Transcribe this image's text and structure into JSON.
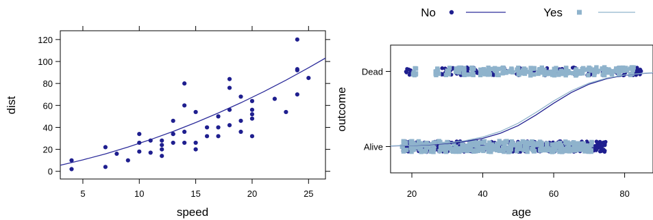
{
  "chart_data": [
    {
      "type": "scatter",
      "title": "",
      "xlabel": "speed",
      "ylabel": "dist",
      "xlim": [
        3,
        26.5
      ],
      "ylim": [
        -7,
        128
      ],
      "xticks": [
        5,
        10,
        15,
        20,
        25
      ],
      "yticks": [
        0,
        20,
        40,
        60,
        80,
        100,
        120
      ],
      "grid": false,
      "point_color": "#1f1f8f",
      "line_color": "#2b2b9a",
      "points": [
        [
          4,
          2
        ],
        [
          4,
          10
        ],
        [
          7,
          4
        ],
        [
          7,
          22
        ],
        [
          8,
          16
        ],
        [
          9,
          10
        ],
        [
          10,
          18
        ],
        [
          10,
          26
        ],
        [
          10,
          34
        ],
        [
          11,
          17
        ],
        [
          11,
          28
        ],
        [
          12,
          14
        ],
        [
          12,
          20
        ],
        [
          12,
          24
        ],
        [
          12,
          28
        ],
        [
          13,
          26
        ],
        [
          13,
          34
        ],
        [
          13,
          34
        ],
        [
          13,
          46
        ],
        [
          14,
          26
        ],
        [
          14,
          36
        ],
        [
          14,
          60
        ],
        [
          14,
          80
        ],
        [
          15,
          20
        ],
        [
          15,
          26
        ],
        [
          15,
          54
        ],
        [
          16,
          32
        ],
        [
          16,
          40
        ],
        [
          17,
          32
        ],
        [
          17,
          40
        ],
        [
          17,
          50
        ],
        [
          18,
          42
        ],
        [
          18,
          56
        ],
        [
          18,
          76
        ],
        [
          18,
          84
        ],
        [
          19,
          36
        ],
        [
          19,
          46
        ],
        [
          19,
          68
        ],
        [
          20,
          32
        ],
        [
          20,
          48
        ],
        [
          20,
          52
        ],
        [
          20,
          56
        ],
        [
          20,
          64
        ],
        [
          22,
          66
        ],
        [
          23,
          54
        ],
        [
          24,
          70
        ],
        [
          24,
          92
        ],
        [
          24,
          93
        ],
        [
          24,
          120
        ],
        [
          25,
          85
        ]
      ],
      "fit_curve": [
        [
          3,
          5.5
        ],
        [
          5,
          10.4
        ],
        [
          7,
          15.9
        ],
        [
          9,
          22.1
        ],
        [
          11,
          28.9
        ],
        [
          13,
          36.3
        ],
        [
          15,
          44.4
        ],
        [
          17,
          53.1
        ],
        [
          19,
          62.4
        ],
        [
          21,
          72.4
        ],
        [
          23,
          83.0
        ],
        [
          25,
          94.3
        ],
        [
          26.5,
          103.1
        ]
      ]
    },
    {
      "type": "scatter",
      "title": "",
      "xlabel": "age",
      "ylabel": "outcome",
      "xlim": [
        14,
        88
      ],
      "ylim": [
        -0.35,
        1.35
      ],
      "xticks": [
        20,
        40,
        60,
        80
      ],
      "yticks": [
        "Alive",
        "Dead"
      ],
      "grid": false,
      "legend": {
        "placement": "top",
        "entries": [
          "No",
          "Yes"
        ]
      },
      "series": [
        {
          "name": "No",
          "color": "#1f1f8f",
          "marker": "circle",
          "points": [
            [
              18,
              0
            ],
            [
              19,
              0
            ],
            [
              20,
              0
            ],
            [
              22,
              0
            ],
            [
              24,
              0
            ],
            [
              25,
              0
            ],
            [
              27,
              0
            ],
            [
              28,
              0
            ],
            [
              30,
              0
            ],
            [
              32,
              0
            ],
            [
              33,
              0
            ],
            [
              35,
              0
            ],
            [
              37,
              0
            ],
            [
              38,
              0
            ],
            [
              40,
              0
            ],
            [
              42,
              0
            ],
            [
              44,
              0
            ],
            [
              46,
              0
            ],
            [
              48,
              0
            ],
            [
              50,
              0
            ],
            [
              52,
              0
            ],
            [
              54,
              0
            ],
            [
              56,
              0
            ],
            [
              58,
              0
            ],
            [
              60,
              0
            ],
            [
              62,
              0
            ],
            [
              64,
              0
            ],
            [
              66,
              0
            ],
            [
              68,
              0
            ],
            [
              70,
              0
            ],
            [
              72,
              0
            ],
            [
              73,
              0
            ],
            [
              74,
              0
            ],
            [
              19,
              1
            ],
            [
              29,
              1
            ],
            [
              31,
              1
            ],
            [
              33,
              1
            ],
            [
              34,
              1
            ],
            [
              36,
              1
            ],
            [
              38,
              1
            ],
            [
              43,
              1
            ],
            [
              46,
              1
            ],
            [
              50,
              1
            ],
            [
              54,
              1
            ],
            [
              58,
              1
            ],
            [
              62,
              1
            ],
            [
              66,
              1
            ],
            [
              70,
              1
            ],
            [
              74,
              1
            ],
            [
              78,
              1
            ],
            [
              80,
              1
            ],
            [
              82,
              1
            ],
            [
              83,
              1
            ],
            [
              84,
              1
            ]
          ],
          "fit_curve": [
            [
              14,
              0.007
            ],
            [
              20,
              0.014
            ],
            [
              25,
              0.024
            ],
            [
              30,
              0.04
            ],
            [
              35,
              0.066
            ],
            [
              40,
              0.109
            ],
            [
              45,
              0.177
            ],
            [
              50,
              0.279
            ],
            [
              55,
              0.42
            ],
            [
              60,
              0.576
            ],
            [
              65,
              0.72
            ],
            [
              70,
              0.83
            ],
            [
              75,
              0.904
            ],
            [
              80,
              0.948
            ],
            [
              85,
              0.972
            ],
            [
              88,
              0.981
            ]
          ]
        },
        {
          "name": "Yes",
          "color": "#8fb3cc",
          "marker": "square",
          "points": [
            [
              18,
              0
            ],
            [
              20,
              0
            ],
            [
              22,
              0
            ],
            [
              24,
              0
            ],
            [
              26,
              0
            ],
            [
              28,
              0
            ],
            [
              30,
              0
            ],
            [
              32,
              0
            ],
            [
              34,
              0
            ],
            [
              36,
              0
            ],
            [
              38,
              0
            ],
            [
              40,
              0
            ],
            [
              42,
              0
            ],
            [
              44,
              0
            ],
            [
              46,
              0
            ],
            [
              48,
              0
            ],
            [
              50,
              0
            ],
            [
              52,
              0
            ],
            [
              54,
              0
            ],
            [
              56,
              0
            ],
            [
              58,
              0
            ],
            [
              60,
              0
            ],
            [
              62,
              0
            ],
            [
              64,
              0
            ],
            [
              66,
              0
            ],
            [
              68,
              0
            ],
            [
              70,
              0
            ],
            [
              21,
              1
            ],
            [
              27,
              1
            ],
            [
              30,
              1
            ],
            [
              33,
              1
            ],
            [
              35,
              1
            ],
            [
              37,
              1
            ],
            [
              40,
              1
            ],
            [
              42,
              1
            ],
            [
              44,
              1
            ],
            [
              46,
              1
            ],
            [
              48,
              1
            ],
            [
              50,
              1
            ],
            [
              52,
              1
            ],
            [
              54,
              1
            ],
            [
              56,
              1
            ],
            [
              58,
              1
            ],
            [
              60,
              1
            ],
            [
              62,
              1
            ],
            [
              64,
              1
            ],
            [
              66,
              1
            ],
            [
              68,
              1
            ],
            [
              70,
              1
            ],
            [
              72,
              1
            ],
            [
              74,
              1
            ],
            [
              76,
              1
            ],
            [
              78,
              1
            ],
            [
              80,
              1
            ],
            [
              82,
              1
            ]
          ],
          "fit_curve": [
            [
              14,
              0.008
            ],
            [
              20,
              0.016
            ],
            [
              25,
              0.028
            ],
            [
              30,
              0.047
            ],
            [
              35,
              0.078
            ],
            [
              40,
              0.127
            ],
            [
              45,
              0.202
            ],
            [
              50,
              0.311
            ],
            [
              55,
              0.454
            ],
            [
              60,
              0.607
            ],
            [
              65,
              0.743
            ],
            [
              70,
              0.845
            ],
            [
              75,
              0.912
            ],
            [
              80,
              0.952
            ],
            [
              85,
              0.975
            ],
            [
              88,
              0.983
            ]
          ]
        }
      ]
    }
  ]
}
